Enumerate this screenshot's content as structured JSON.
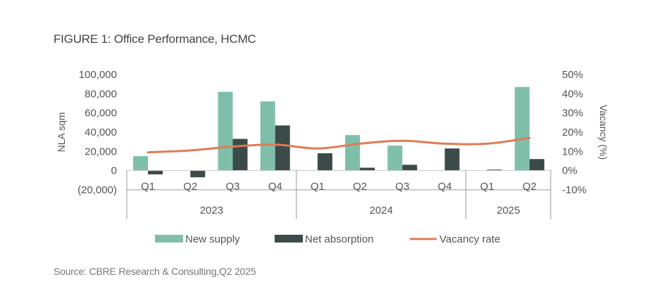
{
  "title": "FIGURE 1: Office Performance, HCMC",
  "source": "Source: CBRE Research & Consulting,Q2 2025",
  "colors": {
    "new_supply": "#7fbfa9",
    "net_absorption": "#3c4a4a",
    "vacancy": "#e07a55",
    "axis": "#9a9a9a",
    "text": "#555555"
  },
  "chart_data": {
    "type": "bar",
    "title": "FIGURE 1: Office Performance, HCMC",
    "categories": [
      "Q1",
      "Q2",
      "Q3",
      "Q4",
      "Q1",
      "Q2",
      "Q3",
      "Q4",
      "Q1",
      "Q2"
    ],
    "groups": [
      {
        "label": "2023",
        "start": 0,
        "end": 3
      },
      {
        "label": "2024",
        "start": 4,
        "end": 7
      },
      {
        "label": "2025",
        "start": 8,
        "end": 9
      }
    ],
    "series": [
      {
        "name": "New supply",
        "type": "bar",
        "axis": "left",
        "values": [
          15000,
          0,
          82000,
          72000,
          0,
          37000,
          26000,
          0,
          0,
          87000
        ]
      },
      {
        "name": "Net absorption",
        "type": "bar",
        "axis": "left",
        "values": [
          -4000,
          -7000,
          33000,
          47000,
          18000,
          3000,
          6000,
          23000,
          1000,
          12000
        ]
      },
      {
        "name": "Vacancy  rate",
        "type": "line",
        "axis": "right",
        "values": [
          9.5,
          10.5,
          12.5,
          13.5,
          11.5,
          14,
          15.5,
          14,
          14,
          17
        ]
      }
    ],
    "ylabel": "NLA sqm",
    "y2label": "Vacancy (%)",
    "ylim": [
      -20000,
      100000
    ],
    "y2lim": [
      -10,
      50
    ],
    "yticks": [
      "(20,000)",
      "0",
      "20,000",
      "40,000",
      "60,000",
      "80,000",
      "100,000"
    ],
    "y2ticks": [
      "-10%",
      "0%",
      "10%",
      "20%",
      "30%",
      "40%",
      "50%"
    ],
    "grid": false,
    "legend_position": "bottom"
  }
}
